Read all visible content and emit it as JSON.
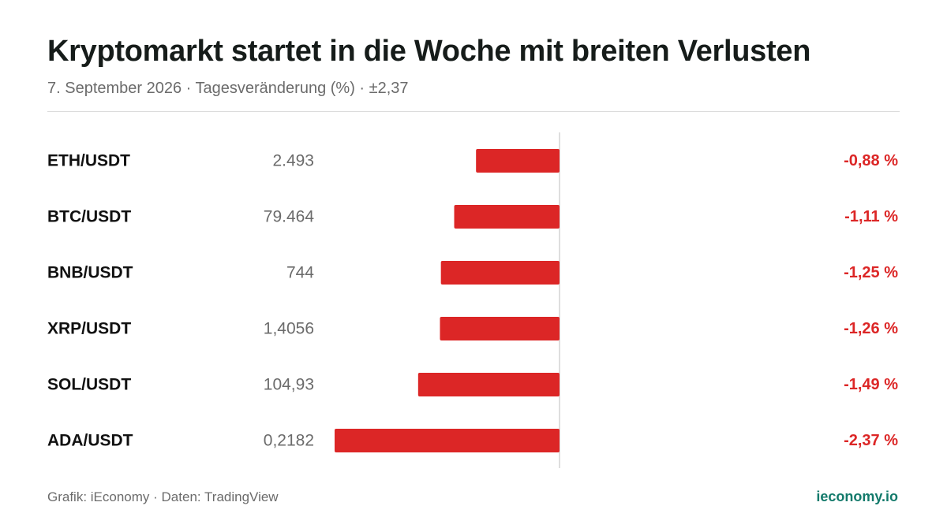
{
  "header": {
    "title": "Kryptomarkt startet in die Woche mit breiten Verlusten",
    "subtitle": "7. September 2026 · Tagesveränderung (%) · ±2,37"
  },
  "footer": {
    "source": "Grafik: iEconomy · Daten: TradingView",
    "brand": "ieconomy.io"
  },
  "colors": {
    "negative": "#dc2626",
    "brand": "#137a6b",
    "text": "#111111",
    "muted": "#6b6b6b",
    "axis": "#d4d4d4"
  },
  "chart_data": {
    "type": "bar",
    "orientation": "horizontal",
    "categories": [
      "ETH/USDT",
      "BTC/USDT",
      "BNB/USDT",
      "XRP/USDT",
      "SOL/USDT",
      "ADA/USDT"
    ],
    "prices": [
      "2.493",
      "79.464",
      "744",
      "1,4056",
      "104,93",
      "0,2182"
    ],
    "values": [
      -0.88,
      -1.11,
      -1.25,
      -1.26,
      -1.49,
      -2.37
    ],
    "value_labels": [
      "-0,88 %",
      "-1,11 %",
      "-1,25 %",
      "-1,26 %",
      "-1,49 %",
      "-2,37 %"
    ],
    "xlim": [
      -2.37,
      2.37
    ],
    "grid": false,
    "legend": "none"
  }
}
